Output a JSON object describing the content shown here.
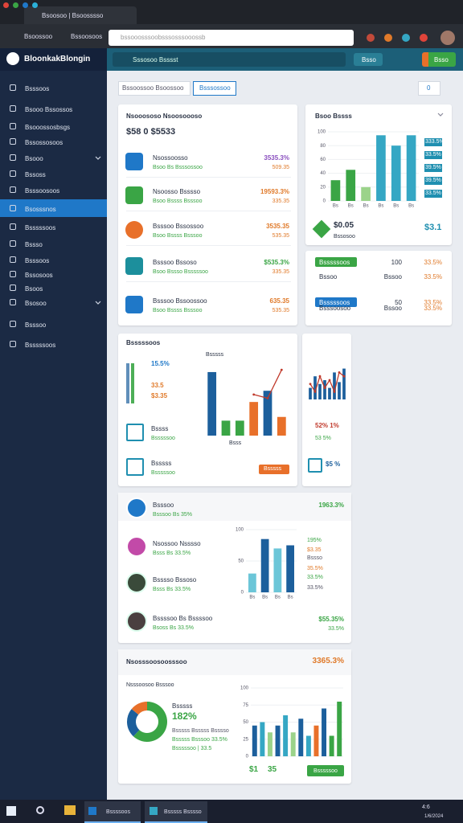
{
  "browser": {
    "tab_title": "Bsoosoo | Bsoosssso",
    "bookmarks": [
      "Bsoossoo",
      "Bssoosoos"
    ],
    "url": "bssooosssoobsssosssooossb"
  },
  "app": {
    "brand": "BloonkakBlongin",
    "search": "Sssosoo Bsssst",
    "header_buttons": [
      "Bsso",
      "Bsso"
    ]
  },
  "sidebar": {
    "items": [
      "Bsssoos",
      "Bsooo Bssossos",
      "Bsooossosbsgs",
      "Bssossosoos",
      "Bsooo",
      "Bssoss",
      "Bsssoosoos",
      "Bsosssnos",
      "Bsssssoos",
      "Bssso",
      "Bsssoos",
      "Bssosoos",
      "Bsoos",
      "Bsosoo",
      "Bsssoo",
      "Bsssssoos"
    ],
    "active_item": 7,
    "expandable": [
      4,
      13
    ]
  },
  "filters": {
    "tabs": [
      "Bssoossoo Bsoossoo",
      "Bsssossoo"
    ],
    "dropdown": "0"
  },
  "summary": {
    "title": "Nsooososo Nsoosoooso",
    "total": "$58 0 $5533",
    "rows": [
      {
        "name": "Nsossoosso",
        "sub": "Bsoo Bs Bsssossoo",
        "value": "3535.3%",
        "change": "509.35",
        "color": "#8a4fbf"
      },
      {
        "name": "Nsoosso Bsssso",
        "sub": "Bsoo Bssss Bsssoo",
        "value": "19593.3%",
        "change": "335.35",
        "color": "#e07a2a"
      },
      {
        "name": "Bsssoo Bssossoo",
        "sub": "Bsoo Bssss Bsssoo",
        "value": "3535.35",
        "change": "535.35",
        "color": "#e07a2a"
      },
      {
        "name": "Bsssoo Bssoso",
        "sub": "Bsoo Bssso Bsssssoo",
        "value": "$535.3%",
        "change": "335.35",
        "color": "#3aa545"
      },
      {
        "name": "Bsssoo Bssoossoo",
        "sub": "Bsoo Bssss Bsssoo",
        "value": "635.35",
        "change": "535.35",
        "color": "#e07a2a"
      }
    ]
  },
  "trend": {
    "title": "Bsoo Bssss",
    "chart": {
      "type": "bar",
      "ylim": [
        0,
        100
      ],
      "yticks": [
        0,
        20,
        40,
        60,
        80,
        100
      ],
      "categories": [
        "Bs",
        "Bs",
        "Bs",
        "Bs",
        "Bs",
        "Bs"
      ],
      "series": [
        {
          "colors": [
            "#3aa545",
            "#3aa545",
            "#9bd38a",
            "#35a7c4",
            "#35a7c4",
            "#35a7c4"
          ],
          "values": [
            30,
            45,
            20,
            95,
            80,
            95
          ]
        }
      ]
    },
    "tags": [
      "333.5%",
      "33.5%",
      "39.5%",
      "39.5%",
      "33.5%"
    ],
    "stat_value": "$0.05",
    "stat_label": "Bssosoo",
    "stat_right": "$3.1"
  },
  "progress": {
    "rows": [
      {
        "cells": [
          "Bsssssoos",
          "100",
          "33.5%"
        ],
        "button_color": "#3aa545"
      },
      {
        "cells": [
          "Bssoo",
          "Bssoo",
          "33.5%"
        ]
      },
      {
        "cells": [
          "Bsssssoos",
          "50",
          "33.5%"
        ],
        "button_color": "#1f78c8"
      },
      {
        "cells": [
          "Bsssoosoo",
          "Bssoo",
          "33.5%"
        ]
      }
    ]
  },
  "performance": {
    "title": "Bsssssoos",
    "stats": [
      "15.5%",
      "33.5",
      "$3.35"
    ],
    "chart_title": "Bsssss",
    "chart": {
      "type": "bar",
      "ylim": [
        0,
        100
      ],
      "series": [
        {
          "colors": [
            "#1c5f9c",
            "#3aa545",
            "#3aa545",
            "#e8702a",
            "#1c5f9c",
            "#e8702a"
          ],
          "values": [
            85,
            20,
            20,
            45,
            60,
            25
          ]
        },
        {
          "type": "line",
          "color": "#c0392b",
          "values": [
            null,
            null,
            null,
            55,
            50,
            88
          ]
        }
      ]
    },
    "chart_xlabel": "Bsss",
    "items": [
      {
        "name": "Bssss",
        "sub": "Bsssssoo"
      },
      {
        "name": "Bsssss",
        "sub": "Bsssssoo"
      }
    ],
    "button": "Bsssss"
  },
  "mini": {
    "chart": {
      "type": "bar",
      "ylim": [
        0,
        100
      ],
      "series": [
        {
          "color": "#1c5f9c",
          "values": [
            30,
            60,
            40,
            50,
            30,
            70,
            45,
            80
          ]
        },
        {
          "type": "line",
          "color": "#c0392b",
          "values": [
            40,
            20,
            60,
            30,
            50,
            20,
            70,
            60
          ]
        }
      ]
    },
    "stats": [
      "52% 1%",
      "53 5%"
    ],
    "icon_value": "$5 %"
  },
  "people": {
    "rows": [
      {
        "name": "Bsssoo",
        "sub": "Bsssoo Bs 35%"
      },
      {
        "name": "Nsossoo Nsssso",
        "sub": "Bsss Bs 33.5%"
      },
      {
        "name": "Bsssso Bssoso",
        "sub": "Bsss Bs 33.5%"
      },
      {
        "name": "Bssssoo Bs Bssssoo",
        "sub": "Bsoss Bs 33.5%"
      }
    ],
    "top_value": "1963.3%",
    "side": [
      "195%",
      "$3.35",
      "Bssso",
      "35.5%",
      "33.5%",
      "33.5%"
    ],
    "bottom": [
      "$55.35%",
      "33.5%"
    ],
    "chart": {
      "type": "bar",
      "ylim": [
        0,
        100
      ],
      "yticks": [
        0,
        50,
        100
      ],
      "categories": [
        "Bs",
        "Bs",
        "Bs",
        "Bs"
      ],
      "series": [
        {
          "colors": [
            "#6cc6d8",
            "#1c5f9c",
            "#6cc6d8",
            "#1c5f9c"
          ],
          "values": [
            30,
            85,
            70,
            75
          ]
        }
      ]
    }
  },
  "overview": {
    "title": "Nsosssoosoosssoo",
    "big": "3365.3%",
    "sub": "Nsssoosoo Bsssoo",
    "donut_label": "Bsssss",
    "donut_value": "182%",
    "lines": [
      "Bsssss Bsssss Bsssso",
      "Bsssss Bsssoo 33.5%",
      "Bsssssoo | 33.5"
    ],
    "donut": {
      "type": "pie",
      "values": [
        62,
        24,
        14
      ],
      "colors": [
        "#3aa545",
        "#1c5f9c",
        "#e8702a"
      ]
    },
    "chart": {
      "type": "bar",
      "ylim": [
        0,
        100
      ],
      "yticks": [
        0,
        25,
        50,
        75,
        100
      ],
      "series": [
        {
          "colors": [
            "#1c5f9c",
            "#35a7c4",
            "#9bd38a",
            "#1c5f9c",
            "#35a7c4",
            "#9bd38a",
            "#1c5f9c",
            "#35a7c4",
            "#e8702a",
            "#1c5f9c",
            "#3aa545",
            "#3aa545"
          ],
          "values": [
            45,
            50,
            35,
            45,
            60,
            35,
            55,
            30,
            45,
            70,
            30,
            80
          ]
        }
      ]
    },
    "footer": [
      "$1",
      "35"
    ],
    "button": "Bsssssoo"
  },
  "taskbar": {
    "apps": [
      "Bssssoos",
      "Bsssss Bsssso"
    ],
    "time": "4:6",
    "date": "1/6/2024"
  }
}
